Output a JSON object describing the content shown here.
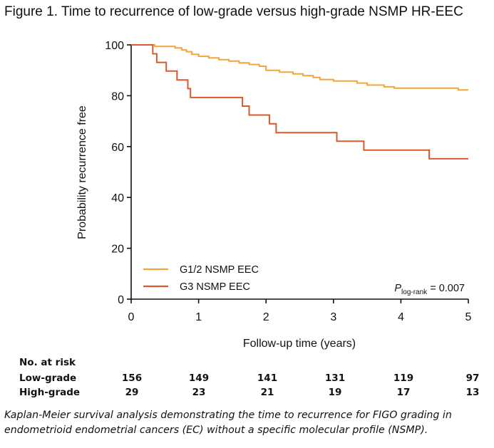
{
  "figure_title": "Figure 1. Time to recurrence of low-grade versus high-grade NSMP HR-EEC",
  "chart_data": {
    "type": "line",
    "subtype": "kaplan-meier step curve",
    "xlabel": "Follow-up time (years)",
    "ylabel": "Probability recurrence free",
    "xlim": [
      0,
      5
    ],
    "ylim": [
      0,
      100
    ],
    "x_ticks": [
      0,
      1,
      2,
      3,
      4,
      5
    ],
    "y_ticks": [
      0,
      20,
      40,
      60,
      80,
      100
    ],
    "grid": false,
    "legend_position": "bottom-left",
    "annotation": {
      "prefix": "P",
      "subscript": "log-rank",
      "text": " = 0.007"
    },
    "series": [
      {
        "name": "G1/2 NSMP EEC",
        "color": "#f5a43a",
        "points": [
          [
            0,
            100
          ],
          [
            0.35,
            100
          ],
          [
            0.35,
            99.4
          ],
          [
            0.65,
            99.4
          ],
          [
            0.65,
            98.8
          ],
          [
            0.75,
            98.8
          ],
          [
            0.75,
            98.0
          ],
          [
            0.82,
            98.0
          ],
          [
            0.82,
            97.3
          ],
          [
            0.9,
            97.3
          ],
          [
            0.9,
            96.3
          ],
          [
            1.0,
            96.3
          ],
          [
            1.0,
            95.5
          ],
          [
            1.15,
            95.5
          ],
          [
            1.15,
            94.9
          ],
          [
            1.3,
            94.9
          ],
          [
            1.3,
            94.2
          ],
          [
            1.45,
            94.2
          ],
          [
            1.45,
            93.6
          ],
          [
            1.6,
            93.6
          ],
          [
            1.6,
            92.9
          ],
          [
            1.75,
            92.9
          ],
          [
            1.75,
            92.3
          ],
          [
            1.9,
            92.3
          ],
          [
            1.9,
            91.6
          ],
          [
            2.0,
            91.6
          ],
          [
            2.0,
            90.0
          ],
          [
            2.2,
            90.0
          ],
          [
            2.2,
            89.3
          ],
          [
            2.4,
            89.3
          ],
          [
            2.4,
            88.6
          ],
          [
            2.55,
            88.6
          ],
          [
            2.55,
            87.9
          ],
          [
            2.7,
            87.9
          ],
          [
            2.7,
            87.2
          ],
          [
            2.8,
            87.2
          ],
          [
            2.8,
            86.4
          ],
          [
            3.0,
            86.4
          ],
          [
            3.0,
            85.8
          ],
          [
            3.35,
            85.8
          ],
          [
            3.35,
            85.0
          ],
          [
            3.5,
            85.0
          ],
          [
            3.5,
            84.2
          ],
          [
            3.75,
            84.2
          ],
          [
            3.75,
            83.5
          ],
          [
            3.9,
            83.5
          ],
          [
            3.9,
            83.0
          ],
          [
            4.85,
            83.0
          ],
          [
            4.85,
            82.3
          ],
          [
            5.0,
            82.3
          ]
        ]
      },
      {
        "name": "G3 NSMP EEC",
        "color": "#d95a2b",
        "points": [
          [
            0,
            100
          ],
          [
            0.32,
            100
          ],
          [
            0.32,
            96.5
          ],
          [
            0.38,
            96.5
          ],
          [
            0.38,
            93.1
          ],
          [
            0.52,
            93.1
          ],
          [
            0.52,
            89.7
          ],
          [
            0.68,
            89.7
          ],
          [
            0.68,
            86.2
          ],
          [
            0.84,
            86.2
          ],
          [
            0.84,
            82.8
          ],
          [
            0.88,
            82.8
          ],
          [
            0.88,
            79.3
          ],
          [
            1.65,
            79.3
          ],
          [
            1.65,
            75.9
          ],
          [
            1.75,
            75.9
          ],
          [
            1.75,
            72.4
          ],
          [
            2.05,
            72.4
          ],
          [
            2.05,
            69.0
          ],
          [
            2.15,
            69.0
          ],
          [
            2.15,
            65.5
          ],
          [
            3.05,
            65.5
          ],
          [
            3.05,
            62.1
          ],
          [
            3.45,
            62.1
          ],
          [
            3.45,
            58.6
          ],
          [
            4.42,
            58.6
          ],
          [
            4.42,
            55.2
          ],
          [
            5.0,
            55.2
          ]
        ]
      }
    ]
  },
  "risk_table": {
    "heading": "No. at risk",
    "rows": [
      {
        "label": "Low-grade",
        "values": [
          "156",
          "149",
          "141",
          "131",
          "119",
          "97"
        ]
      },
      {
        "label": "High-grade",
        "values": [
          "29",
          "23",
          "21",
          "19",
          "17",
          "13"
        ]
      }
    ]
  },
  "caption": "Kaplan-Meier survival analysis demonstrating the time to recurrence for FIGO grading in endometrioid endometrial cancers (EC) without a specific molecular profile (NSMP)."
}
